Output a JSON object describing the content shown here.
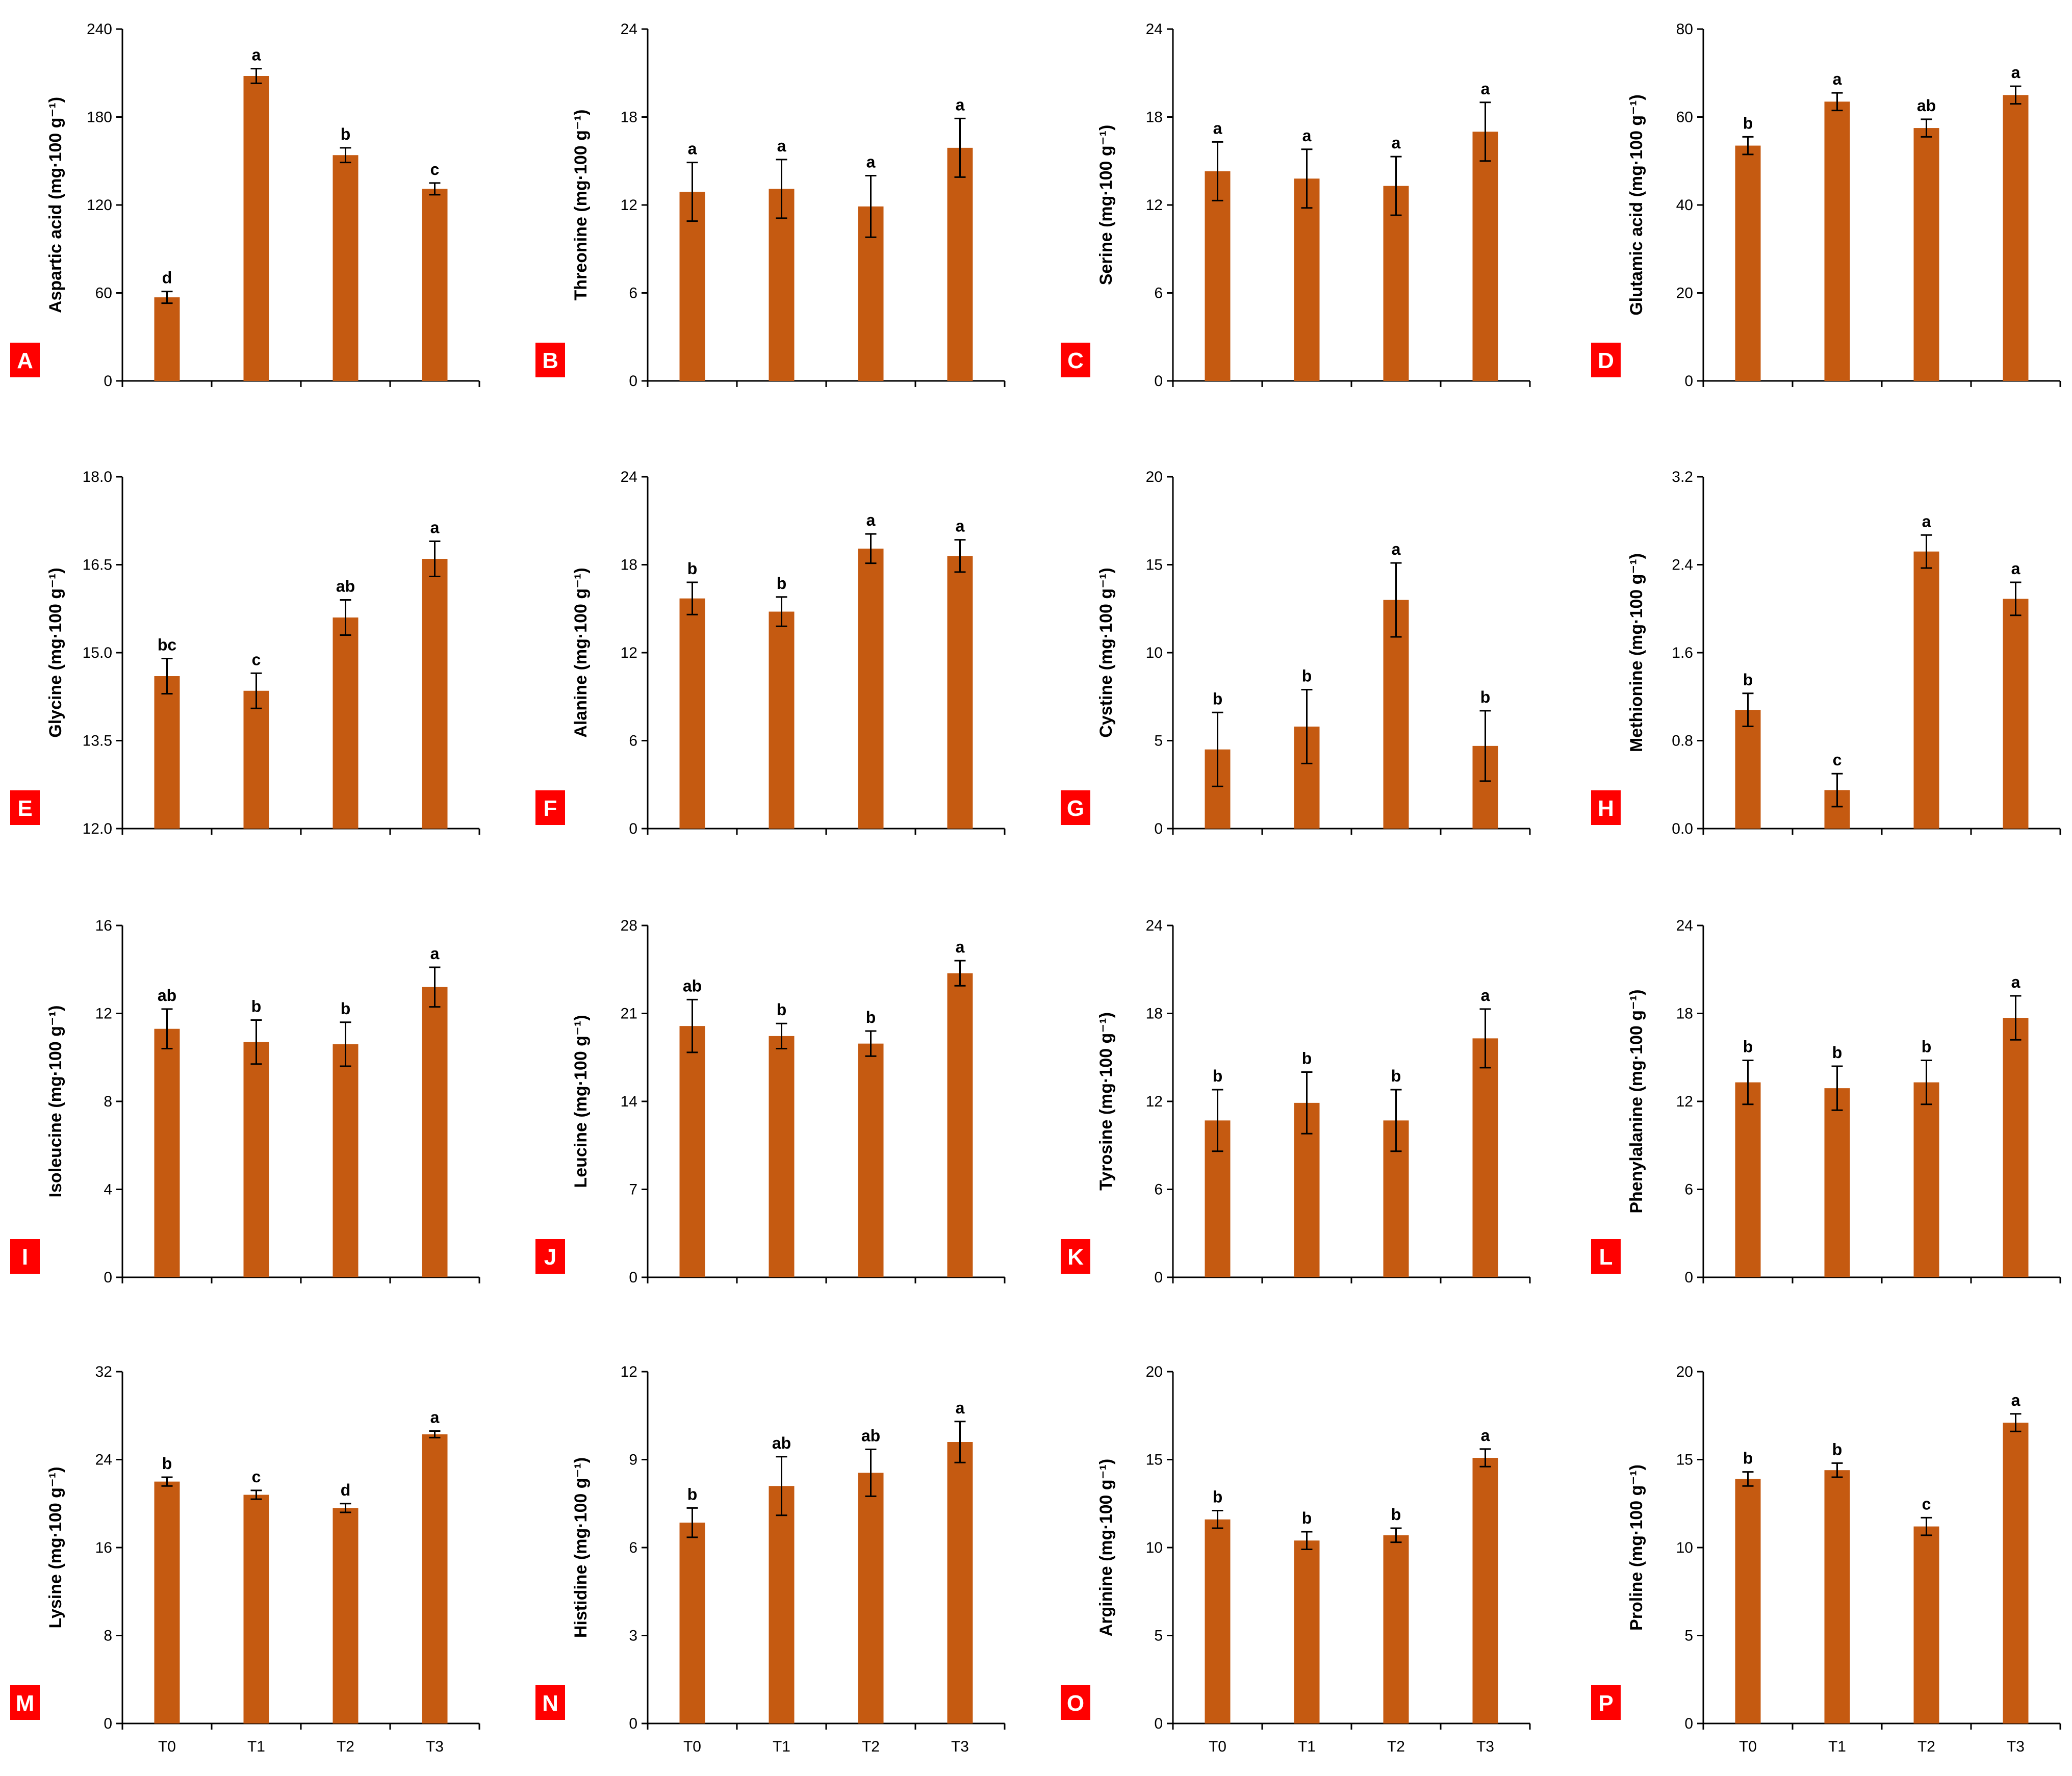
{
  "colors": {
    "bar": "#c55a11",
    "axis": "#000000",
    "panel_label_bg": "#ff0000",
    "panel_label_text": "#ffffff"
  },
  "chart_data": [
    {
      "panel": "A",
      "type": "bar",
      "ylabel": "Aspartic acid (mg·100 g⁻¹)",
      "ylim": [
        0,
        240
      ],
      "yticks": [
        "0",
        "60",
        "120",
        "180",
        "240"
      ],
      "categories": [
        "T0",
        "T1",
        "T2",
        "T3"
      ],
      "values": [
        57,
        208,
        154,
        131
      ],
      "errors": [
        4,
        5,
        5,
        4
      ],
      "letters": [
        "d",
        "a",
        "b",
        "c"
      ]
    },
    {
      "panel": "B",
      "type": "bar",
      "ylabel": "Threonine (mg·100 g⁻¹)",
      "ylim": [
        0,
        24
      ],
      "yticks": [
        "0",
        "6",
        "12",
        "18",
        "24"
      ],
      "categories": [
        "T0",
        "T1",
        "T2",
        "T3"
      ],
      "values": [
        12.9,
        13.1,
        11.9,
        15.9
      ],
      "errors": [
        2.0,
        2.0,
        2.1,
        2.0
      ],
      "letters": [
        "a",
        "a",
        "a",
        "a"
      ]
    },
    {
      "panel": "C",
      "type": "bar",
      "ylabel": "Serine (mg·100 g⁻¹)",
      "ylim": [
        0,
        24
      ],
      "yticks": [
        "0",
        "6",
        "12",
        "18",
        "24"
      ],
      "categories": [
        "T0",
        "T1",
        "T2",
        "T3"
      ],
      "values": [
        14.3,
        13.8,
        13.3,
        17.0
      ],
      "errors": [
        2.0,
        2.0,
        2.0,
        2.0
      ],
      "letters": [
        "a",
        "a",
        "a",
        "a"
      ]
    },
    {
      "panel": "D",
      "type": "bar",
      "ylabel": "Glutamic acid (mg·100 g⁻¹)",
      "ylim": [
        0,
        80
      ],
      "yticks": [
        "0",
        "20",
        "40",
        "60",
        "80"
      ],
      "categories": [
        "T0",
        "T1",
        "T2",
        "T3"
      ],
      "values": [
        53.5,
        63.5,
        57.5,
        65.0
      ],
      "errors": [
        2.0,
        2.0,
        2.0,
        2.0
      ],
      "letters": [
        "b",
        "a",
        "ab",
        "a"
      ]
    },
    {
      "panel": "E",
      "type": "bar",
      "ylabel": "Glycine (mg·100 g⁻¹)",
      "ylim": [
        12.0,
        18.0
      ],
      "yticks": [
        "12.0",
        "13.5",
        "15.0",
        "16.5",
        "18.0"
      ],
      "categories": [
        "T0",
        "T1",
        "T2",
        "T3"
      ],
      "values": [
        14.6,
        14.35,
        15.6,
        16.6
      ],
      "errors": [
        0.3,
        0.3,
        0.3,
        0.3
      ],
      "letters": [
        "bc",
        "c",
        "ab",
        "a"
      ]
    },
    {
      "panel": "F",
      "type": "bar",
      "ylabel": "Alanine (mg·100 g⁻¹)",
      "ylim": [
        0,
        24
      ],
      "yticks": [
        "0",
        "6",
        "12",
        "18",
        "24"
      ],
      "categories": [
        "T0",
        "T1",
        "T2",
        "T3"
      ],
      "values": [
        15.7,
        14.8,
        19.1,
        18.6
      ],
      "errors": [
        1.1,
        1.0,
        1.0,
        1.1
      ],
      "letters": [
        "b",
        "b",
        "a",
        "a"
      ]
    },
    {
      "panel": "G",
      "type": "bar",
      "ylabel": "Cystine (mg·100 g⁻¹)",
      "ylim": [
        0,
        20
      ],
      "yticks": [
        "0",
        "5",
        "10",
        "15",
        "20"
      ],
      "categories": [
        "T0",
        "T1",
        "T2",
        "T3"
      ],
      "values": [
        4.5,
        5.8,
        13.0,
        4.7
      ],
      "errors": [
        2.1,
        2.1,
        2.1,
        2.0
      ],
      "letters": [
        "b",
        "b",
        "a",
        "b"
      ]
    },
    {
      "panel": "H",
      "type": "bar",
      "ylabel": "Methionine (mg·100 g⁻¹)",
      "ylim": [
        0.0,
        3.2
      ],
      "yticks": [
        "0.0",
        "0.8",
        "1.6",
        "2.4",
        "3.2"
      ],
      "categories": [
        "T0",
        "T1",
        "T2",
        "T3"
      ],
      "values": [
        1.08,
        0.35,
        2.52,
        2.09
      ],
      "errors": [
        0.15,
        0.15,
        0.15,
        0.15
      ],
      "letters": [
        "b",
        "c",
        "a",
        "a"
      ]
    },
    {
      "panel": "I",
      "type": "bar",
      "ylabel": "Isoleucine (mg·100 g⁻¹)",
      "ylim": [
        0,
        16
      ],
      "yticks": [
        "0",
        "4",
        "8",
        "12",
        "16"
      ],
      "categories": [
        "T0",
        "T1",
        "T2",
        "T3"
      ],
      "values": [
        11.3,
        10.7,
        10.6,
        13.2
      ],
      "errors": [
        0.9,
        1.0,
        1.0,
        0.9
      ],
      "letters": [
        "ab",
        "b",
        "b",
        "a"
      ]
    },
    {
      "panel": "J",
      "type": "bar",
      "ylabel": "Leucine (mg·100 g⁻¹)",
      "ylim": [
        0,
        28
      ],
      "yticks": [
        "0",
        "7",
        "14",
        "21",
        "28"
      ],
      "categories": [
        "T0",
        "T1",
        "T2",
        "T3"
      ],
      "values": [
        20.0,
        19.2,
        18.6,
        24.2
      ],
      "errors": [
        2.1,
        1.0,
        1.0,
        1.0
      ],
      "letters": [
        "ab",
        "b",
        "b",
        "a"
      ]
    },
    {
      "panel": "K",
      "type": "bar",
      "ylabel": "Tyrosine (mg·100 g⁻¹)",
      "ylim": [
        0,
        24
      ],
      "yticks": [
        "0",
        "6",
        "12",
        "18",
        "24"
      ],
      "categories": [
        "T0",
        "T1",
        "T2",
        "T3"
      ],
      "values": [
        10.7,
        11.9,
        10.7,
        16.3
      ],
      "errors": [
        2.1,
        2.1,
        2.1,
        2.0
      ],
      "letters": [
        "b",
        "b",
        "b",
        "a"
      ]
    },
    {
      "panel": "L",
      "type": "bar",
      "ylabel": "Phenylalanine (mg·100 g⁻¹)",
      "ylim": [
        0,
        24
      ],
      "yticks": [
        "0",
        "6",
        "12",
        "18",
        "24"
      ],
      "categories": [
        "T0",
        "T1",
        "T2",
        "T3"
      ],
      "values": [
        13.3,
        12.9,
        13.3,
        17.7
      ],
      "errors": [
        1.5,
        1.5,
        1.5,
        1.5
      ],
      "letters": [
        "b",
        "b",
        "b",
        "a"
      ]
    },
    {
      "panel": "M",
      "type": "bar",
      "ylabel": "Lysine (mg·100 g⁻¹)",
      "ylim": [
        0,
        32
      ],
      "yticks": [
        "0",
        "8",
        "16",
        "24",
        "32"
      ],
      "categories": [
        "T0",
        "T1",
        "T2",
        "T3"
      ],
      "values": [
        22.0,
        20.8,
        19.6,
        26.3
      ],
      "errors": [
        0.4,
        0.4,
        0.4,
        0.3
      ],
      "letters": [
        "b",
        "c",
        "d",
        "a"
      ]
    },
    {
      "panel": "N",
      "type": "bar",
      "ylabel": "Histidine (mg·100 g⁻¹)",
      "ylim": [
        0,
        12
      ],
      "yticks": [
        "0",
        "3",
        "6",
        "9",
        "12"
      ],
      "categories": [
        "T0",
        "T1",
        "T2",
        "T3"
      ],
      "values": [
        6.85,
        8.1,
        8.55,
        9.6
      ],
      "errors": [
        0.5,
        1.0,
        0.8,
        0.7
      ],
      "letters": [
        "b",
        "ab",
        "ab",
        "a"
      ]
    },
    {
      "panel": "O",
      "type": "bar",
      "ylabel": "Arginine (mg·100 g⁻¹)",
      "ylim": [
        0,
        20
      ],
      "yticks": [
        "0",
        "5",
        "10",
        "15",
        "20"
      ],
      "categories": [
        "T0",
        "T1",
        "T2",
        "T3"
      ],
      "values": [
        11.6,
        10.4,
        10.7,
        15.1
      ],
      "errors": [
        0.5,
        0.5,
        0.4,
        0.5
      ],
      "letters": [
        "b",
        "b",
        "b",
        "a"
      ]
    },
    {
      "panel": "P",
      "type": "bar",
      "ylabel": "Proline (mg·100 g⁻¹)",
      "ylim": [
        0,
        20
      ],
      "yticks": [
        "0",
        "5",
        "10",
        "15",
        "20"
      ],
      "categories": [
        "T0",
        "T1",
        "T2",
        "T3"
      ],
      "values": [
        13.9,
        14.4,
        11.2,
        17.1
      ],
      "errors": [
        0.4,
        0.4,
        0.5,
        0.5
      ],
      "letters": [
        "b",
        "b",
        "c",
        "a"
      ]
    }
  ]
}
